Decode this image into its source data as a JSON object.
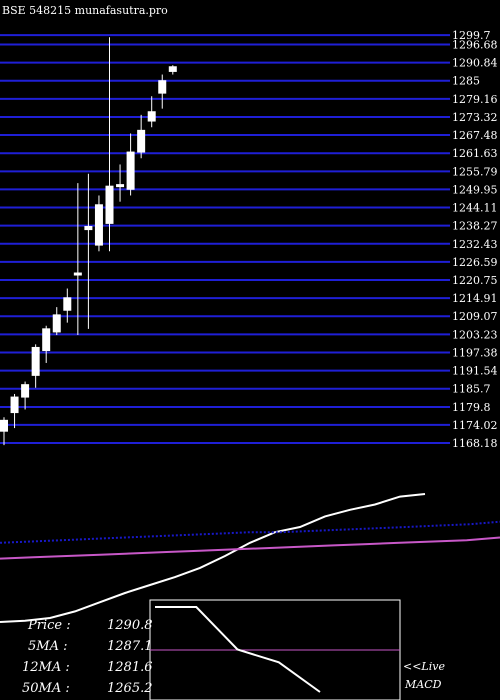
{
  "header": {
    "title": "BSE 548215 munafasutra.pro"
  },
  "colors": {
    "background": "#000000",
    "grid": "#1f1fd6",
    "candle": "#ffffff",
    "ma_line_white": "#ffffff",
    "ma_line_blue": "#1818c8",
    "ma_line_magenta": "#c858c8",
    "macd_box": "#ffffff"
  },
  "chart_data": {
    "type": "candlestick",
    "title": "BSE 548215 munafasutra.pro",
    "ylim": [
      1164,
      1302
    ],
    "y_ticks": [
      1299.7,
      1296.68,
      1290.84,
      1285,
      1279.16,
      1273.32,
      1267.48,
      1261.63,
      1255.79,
      1249.95,
      1244.11,
      1238.27,
      1232.43,
      1226.59,
      1220.75,
      1214.91,
      1209.07,
      1203.23,
      1197.38,
      1191.54,
      1185.7,
      1179.8,
      1174.02,
      1168.18
    ],
    "y_tick_labels": [
      "1299.7",
      "1296.68",
      "1290.84",
      "1285",
      "1279.16",
      "1273.32",
      "1267.48",
      "1261.63",
      "1255.79",
      "1249.95",
      "1244.11",
      "1238.27",
      "1232.43",
      "1226.59",
      "1220.75",
      "1214.91",
      "1209.07",
      "1203.23",
      "1197.38",
      "1191.54",
      "1185.7",
      "1179.8",
      "1174.02",
      "1168.18"
    ],
    "grid": true,
    "candles": [
      {
        "o": 1172,
        "h": 1176.5,
        "l": 1167.5,
        "c": 1175.5
      },
      {
        "o": 1178,
        "h": 1184,
        "l": 1173,
        "c": 1183
      },
      {
        "o": 1183,
        "h": 1188,
        "l": 1179,
        "c": 1187
      },
      {
        "o": 1190,
        "h": 1200,
        "l": 1186,
        "c": 1199
      },
      {
        "o": 1198,
        "h": 1206,
        "l": 1194,
        "c": 1205
      },
      {
        "o": 1204,
        "h": 1212,
        "l": 1203,
        "c": 1209.5
      },
      {
        "o": 1211,
        "h": 1218,
        "l": 1207,
        "c": 1215
      },
      {
        "o": 1222.5,
        "h": 1252,
        "l": 1203,
        "c": 1223
      },
      {
        "o": 1237,
        "h": 1255,
        "l": 1205,
        "c": 1238
      },
      {
        "o": 1232,
        "h": 1248,
        "l": 1230,
        "c": 1245
      },
      {
        "o": 1239,
        "h": 1299,
        "l": 1230,
        "c": 1251
      },
      {
        "o": 1251,
        "h": 1258,
        "l": 1246,
        "c": 1251.5
      },
      {
        "o": 1250,
        "h": 1268,
        "l": 1248,
        "c": 1262
      },
      {
        "o": 1262,
        "h": 1274,
        "l": 1260,
        "c": 1269
      },
      {
        "o": 1272,
        "h": 1280,
        "l": 1270,
        "c": 1275
      },
      {
        "o": 1281,
        "h": 1287,
        "l": 1276,
        "c": 1285
      },
      {
        "o": 1288,
        "h": 1290,
        "l": 1287,
        "c": 1289.5
      }
    ],
    "ma_lines": [
      {
        "color": "#ffffff",
        "values": [
          0.0,
          0.01,
          0.03,
          0.08,
          0.15,
          0.22,
          0.28,
          0.34,
          0.41,
          0.5,
          0.6,
          0.68,
          0.72,
          0.8,
          0.85,
          0.89,
          0.95,
          0.97
        ]
      },
      {
        "color": "#1818c8",
        "dotted": true,
        "values": [
          0.6,
          0.61,
          0.62,
          0.63,
          0.64,
          0.65,
          0.66,
          0.67,
          0.68,
          0.68,
          0.69,
          0.7,
          0.71,
          0.72,
          0.73,
          0.74,
          0.76
        ]
      },
      {
        "color": "#c858c8",
        "values": [
          0.48,
          0.49,
          0.5,
          0.51,
          0.52,
          0.53,
          0.54,
          0.55,
          0.56,
          0.57,
          0.58,
          0.59,
          0.6,
          0.61,
          0.62,
          0.64
        ]
      }
    ],
    "macd_line": [
      1.0,
      1.0,
      0.5,
      0.35,
      0.0
    ]
  },
  "ma_readout": [
    {
      "label": "Price  :",
      "value": "1290.8"
    },
    {
      "label": "5MA :",
      "value": "1287.1"
    },
    {
      "label": "12MA :",
      "value": "1281.6"
    },
    {
      "label": "50MA :",
      "value": "1265.2"
    }
  ],
  "macd_panel": {
    "arrow_label": "<<Live",
    "label": "MACD"
  }
}
